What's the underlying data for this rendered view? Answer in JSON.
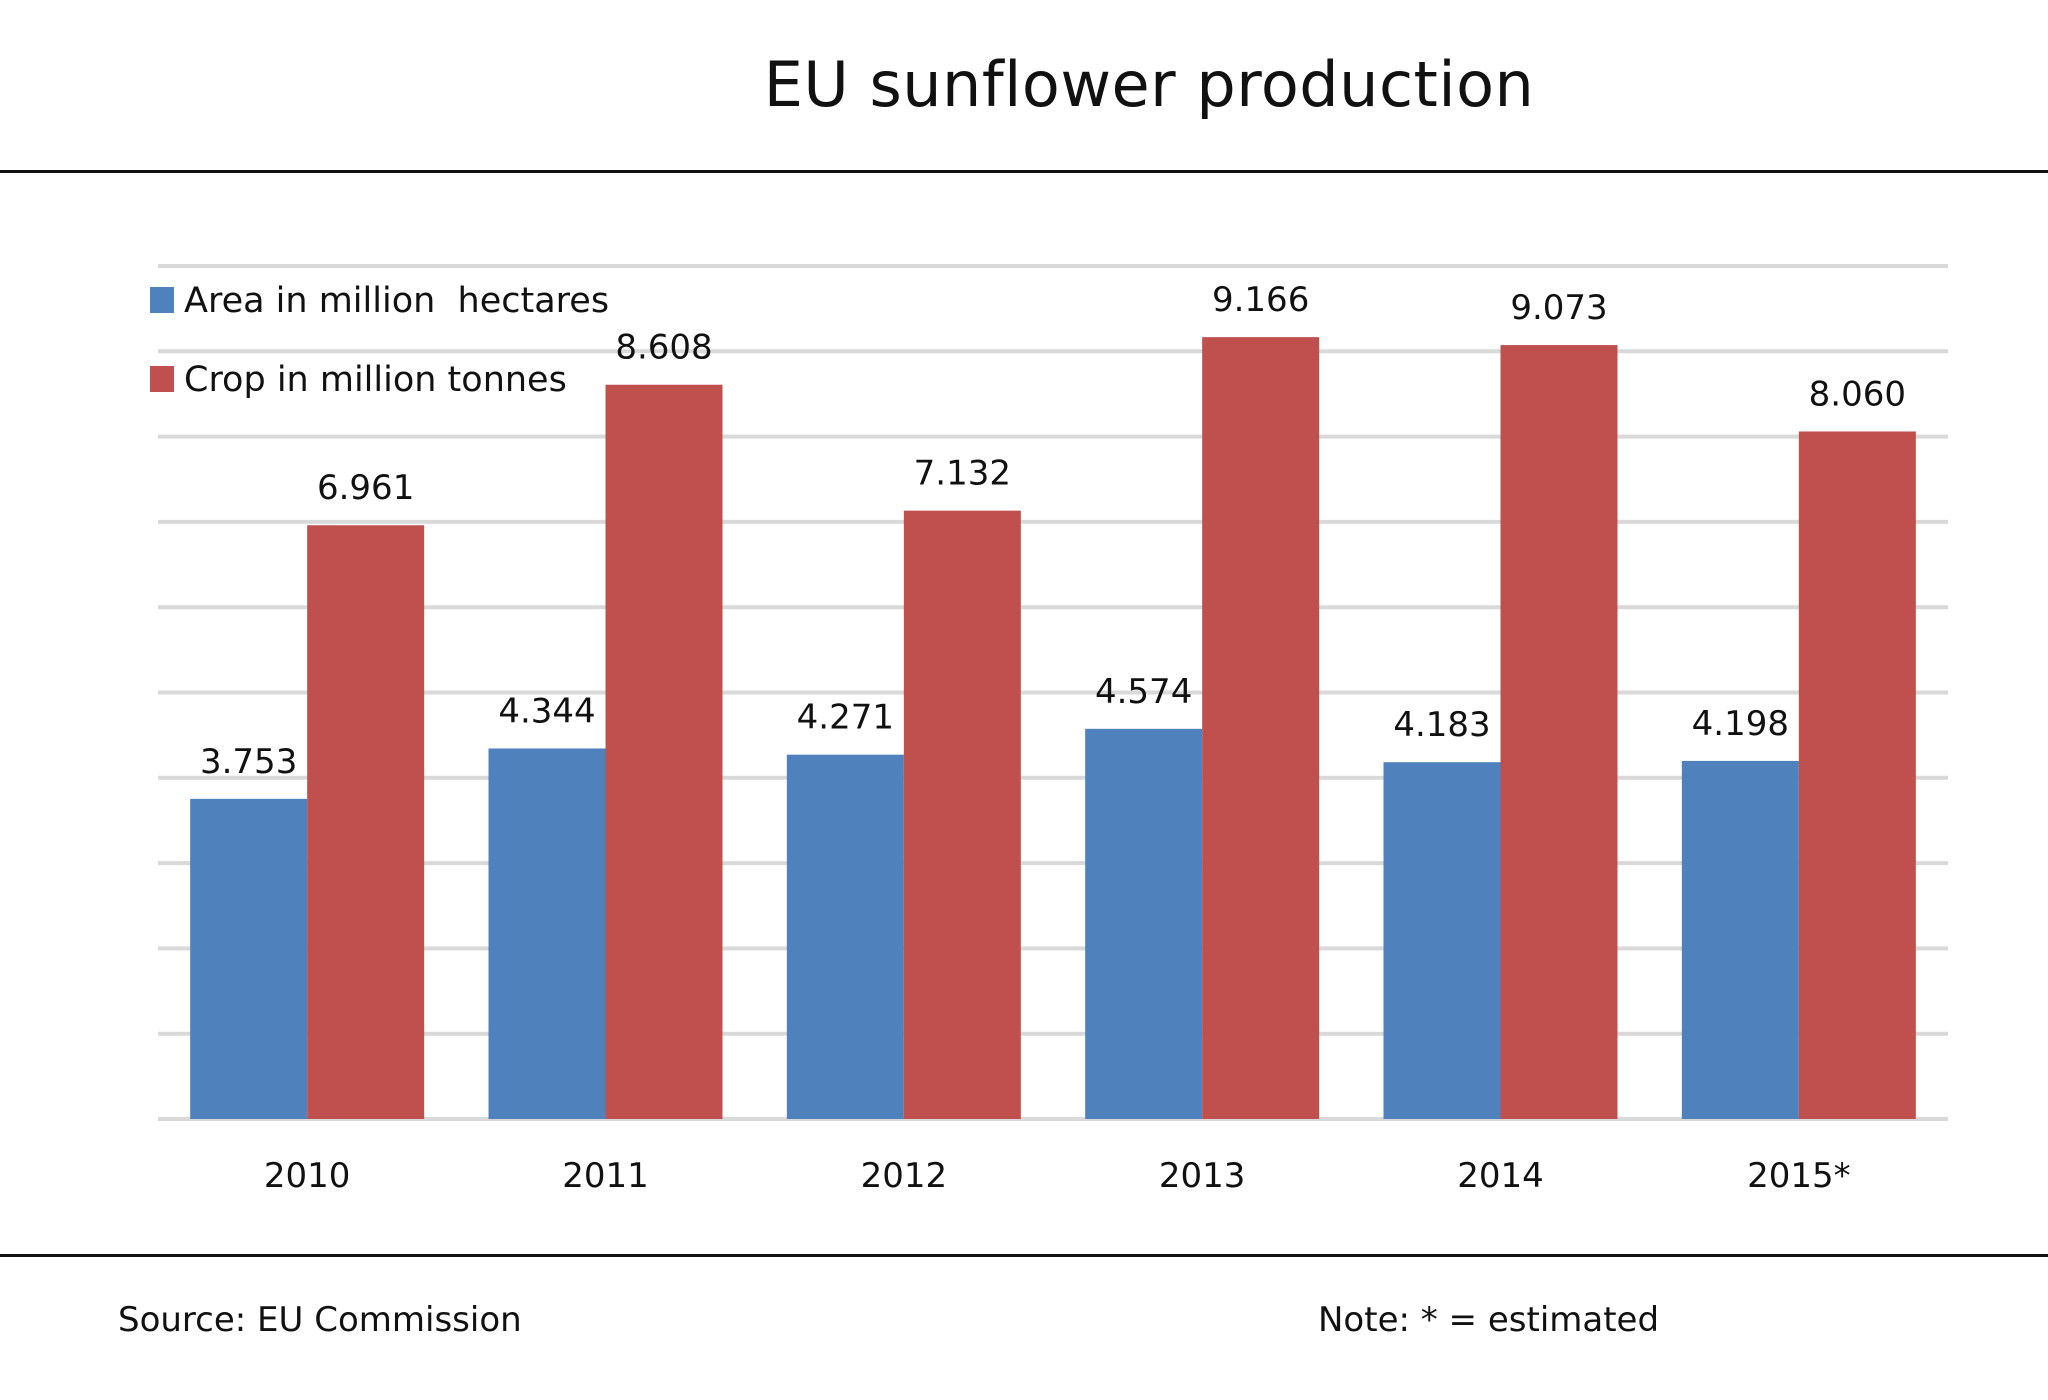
{
  "chart_data": {
    "type": "bar",
    "title": "EU sunflower production",
    "categories": [
      "2010",
      "2011",
      "2012",
      "2013",
      "2014",
      "2015*"
    ],
    "series": [
      {
        "name": "Area in million  hectares",
        "color": "#4f81bd",
        "values": [
          3.753,
          4.344,
          4.271,
          4.574,
          4.183,
          4.198
        ],
        "labels": [
          "3.753",
          "4.344",
          "4.271",
          "4.574",
          "4.183",
          "4.198"
        ]
      },
      {
        "name": "Crop in million tonnes",
        "color": "#c0504d",
        "values": [
          6.961,
          8.608,
          7.132,
          9.166,
          9.073,
          8.06
        ],
        "labels": [
          "6.961",
          "8.608",
          "7.132",
          "9.166",
          "9.073",
          "8.060"
        ]
      }
    ],
    "ylim": [
      0,
      10
    ],
    "grid": true,
    "gridline_color": "#d9d9d9",
    "legend": "top-left"
  },
  "footer": {
    "source": "Source:  EU Commission",
    "note": "Note: * = estimated"
  }
}
